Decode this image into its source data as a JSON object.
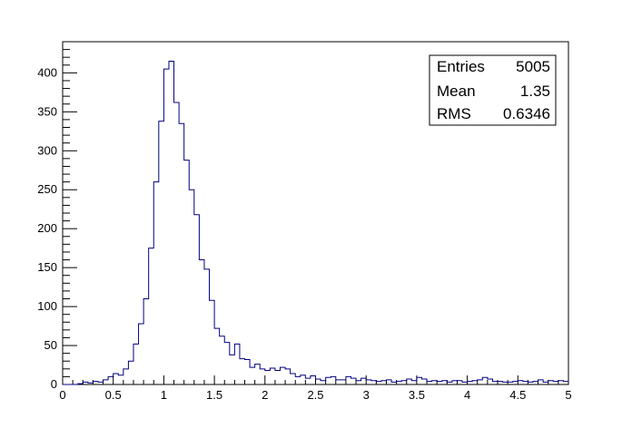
{
  "chart_data": {
    "type": "bar",
    "title": "",
    "xlabel": "",
    "ylabel": "",
    "xlim": [
      0,
      5
    ],
    "ylim": [
      0,
      440
    ],
    "grid": false,
    "line_color": "#000080",
    "bin_width": 0.05,
    "x_ticks": [
      0,
      0.5,
      1,
      1.5,
      2,
      2.5,
      3,
      3.5,
      4,
      4.5,
      5
    ],
    "x_tick_labels": [
      "0",
      "0.5",
      "1",
      "1.5",
      "2",
      "2.5",
      "3",
      "3.5",
      "4",
      "4.5",
      "5"
    ],
    "y_ticks": [
      0,
      50,
      100,
      150,
      200,
      250,
      300,
      350,
      400
    ],
    "y_tick_labels": [
      "0",
      "50",
      "100",
      "150",
      "200",
      "250",
      "300",
      "350",
      "400"
    ],
    "bin_edges_start": 0,
    "values": [
      0,
      0,
      0,
      1,
      3,
      2,
      4,
      3,
      6,
      10,
      14,
      12,
      20,
      30,
      52,
      78,
      110,
      175,
      260,
      338,
      405,
      415,
      362,
      335,
      288,
      250,
      218,
      160,
      148,
      108,
      72,
      62,
      54,
      38,
      52,
      33,
      32,
      22,
      26,
      20,
      18,
      21,
      18,
      22,
      20,
      14,
      10,
      12,
      8,
      11,
      7,
      5,
      9,
      10,
      6,
      6,
      10,
      8,
      5,
      8,
      6,
      5,
      4,
      5,
      6,
      3,
      4,
      5,
      7,
      5,
      9,
      7,
      4,
      5,
      4,
      5,
      3,
      5,
      5,
      3,
      4,
      5,
      6,
      9,
      7,
      4,
      4,
      3,
      3,
      4,
      5,
      4,
      3,
      4,
      6,
      3,
      5,
      4,
      5,
      4
    ],
    "stats_box": {
      "position": "top-right",
      "rows": [
        {
          "label": "Entries",
          "value": "5005"
        },
        {
          "label": "Mean",
          "value": "1.35"
        },
        {
          "label": "RMS",
          "value": "0.6346"
        }
      ]
    }
  }
}
